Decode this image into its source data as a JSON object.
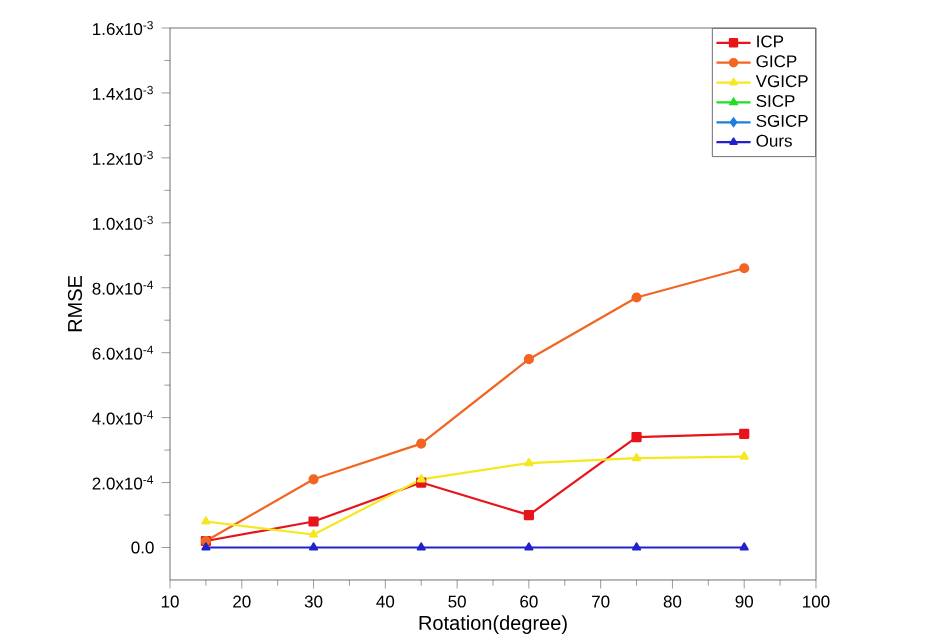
{
  "chart_data": {
    "type": "line",
    "xlabel": "Rotation(degree)",
    "ylabel": "RMSE",
    "x": [
      15,
      30,
      45,
      60,
      75,
      90
    ],
    "series": [
      {
        "name": "ICP",
        "color": "#e8141c",
        "marker": "square",
        "values": [
          2e-05,
          8e-05,
          0.0002,
          0.0001,
          0.00034,
          0.00035
        ]
      },
      {
        "name": "GICP",
        "color": "#f26522",
        "marker": "circle",
        "values": [
          2e-05,
          0.00021,
          0.00032,
          0.00058,
          0.00077,
          0.00086
        ]
      },
      {
        "name": "VGICP",
        "color": "#f5e81e",
        "marker": "triangle",
        "values": [
          8e-05,
          4e-05,
          0.00021,
          0.00026,
          0.000275,
          0.00028
        ]
      },
      {
        "name": "SICP",
        "color": "#22dd22",
        "marker": "triangle",
        "values": [
          null,
          null,
          null,
          null,
          null,
          null
        ]
      },
      {
        "name": "SGICP",
        "color": "#1e7ee0",
        "marker": "diamond",
        "values": [
          null,
          null,
          null,
          null,
          null,
          null
        ]
      },
      {
        "name": "Ours",
        "color": "#2222cc",
        "marker": "triangle",
        "values": [
          0,
          0,
          0,
          0,
          0,
          0
        ]
      }
    ],
    "xlim": [
      10,
      100
    ],
    "xticks": [
      10,
      20,
      30,
      40,
      50,
      60,
      70,
      80,
      90,
      100
    ],
    "ylim": [
      -0.0001,
      0.0016
    ],
    "yticks": [
      {
        "value": 0,
        "label": "0.0"
      },
      {
        "value": 0.0002,
        "label": "2.0x10$^{-4}$"
      },
      {
        "value": 0.0004,
        "label": "4.0x10$^{-4}$"
      },
      {
        "value": 0.0006,
        "label": "6.0x10$^{-4}$"
      },
      {
        "value": 0.0008,
        "label": "8.0x10$^{-4}$"
      },
      {
        "value": 0.001,
        "label": "1.0x10$^{-3}$"
      },
      {
        "value": 0.0012,
        "label": "1.2x10$^{-3}$"
      },
      {
        "value": 0.0014,
        "label": "1.4x10$^{-3}$"
      },
      {
        "value": 0.0016,
        "label": "1.6x10$^{-3}$"
      }
    ],
    "grid": false,
    "legend": "top right",
    "line_style": "solid"
  }
}
